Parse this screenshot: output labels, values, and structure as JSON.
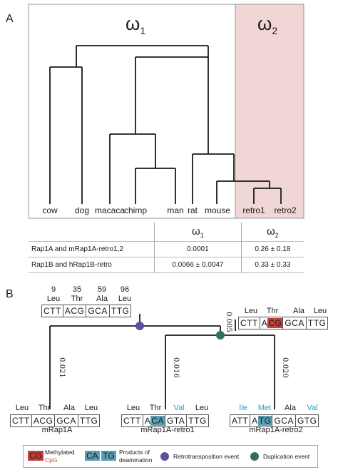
{
  "panel_a": {
    "letter": "A",
    "omega1": "ω",
    "omega1_sub": "1",
    "omega2": "ω",
    "omega2_sub": "2",
    "taxa": [
      "cow",
      "dog",
      "macaca",
      "chimp",
      "man",
      "rat",
      "mouse",
      "retro1",
      "retro2"
    ],
    "colors": {
      "retro_region": "#f0d6d4",
      "tree_line": "#1a1a1a"
    },
    "table": {
      "headers": [
        "",
        "ω1",
        "ω2"
      ],
      "rows": [
        {
          "label": "Rap1A and mRap1A-retro1,2",
          "w1": "0.0001",
          "w2": "0.26 ± 0.18"
        },
        {
          "label": "Rap1B and hRap1B-retro",
          "w1": "0.0066 ± 0.0047",
          "w2": "0.33 ± 0.33"
        }
      ]
    }
  },
  "panel_b": {
    "letter": "B",
    "ancestor": {
      "positions": [
        "9",
        "35",
        "59",
        "96"
      ],
      "amino_acids": [
        "Leu",
        "Thr",
        "Ala",
        "Leu"
      ],
      "codons": [
        "CTT",
        "ACG",
        "GCA",
        "TTG"
      ]
    },
    "branch_labels": [
      "0.021",
      "0.005",
      "0.016",
      "0.020"
    ],
    "intermediate": {
      "amino_acids": [
        "Leu",
        "Thr",
        "Ala",
        "Leu"
      ],
      "codons": [
        "CTT",
        "A",
        "CG",
        "GCA",
        "TTG"
      ]
    },
    "mRap1A": {
      "name": "mRap1A",
      "amino_acids": [
        "Leu",
        "Thr",
        "Ala",
        "Leu"
      ],
      "codons": [
        "CTT",
        "ACG",
        "GCA",
        "TTG"
      ]
    },
    "retro1": {
      "name": "mRap1A-retro1",
      "amino_acids": [
        "Leu",
        "Thr",
        "Val",
        "Leu"
      ],
      "codons": [
        "CTT",
        "A",
        "CA",
        "GTA",
        "TTG"
      ]
    },
    "retro2": {
      "name": "mRap1A-retro2",
      "amino_acids": [
        "Ile",
        "Met",
        "Ala",
        "Val"
      ],
      "codons": [
        "ATT",
        "A",
        "TG",
        "GCA",
        "GTG"
      ]
    },
    "legend": {
      "cg": "CG",
      "methylated": "Methylated",
      "cpg": "CpG",
      "ca": "CA",
      "tg": "TG",
      "products_1": "Products of",
      "products_2": "deamination",
      "retro_event": "Retrotransposition event",
      "dup_event": "Duplication event"
    },
    "colors": {
      "cpg": "#c33f3a",
      "deamination": "#5aa0b4",
      "changed_aa": "#2a9fc8",
      "retro_dot": "#5a4fa0",
      "dup_dot": "#2e6f5e"
    }
  }
}
